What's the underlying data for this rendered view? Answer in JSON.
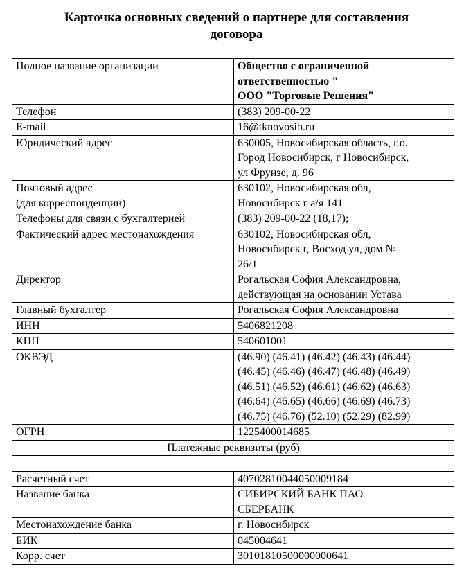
{
  "title": "Карточка основных сведений о партнере для составления\nдоговора",
  "rows": [
    {
      "label": "Полное название организации",
      "value": "Общество с ограниченной\nответственностью \"\nООО \"Торговые Решения\""
    },
    {
      "label": "Телефон",
      "value": "(383) 209-00-22"
    },
    {
      "label": "E-mail",
      "value": "16@tknovosib.ru"
    },
    {
      "label": "Юридический адрес",
      "value": "630005, Новосибирская область, г.о.\nГород Новосибирск, г Новосибирск,\nул Фрунзе, д. 96"
    },
    {
      "label": "Почтовый адрес\n(для корреспонденции)",
      "value": "630102, Новосибирская обл,\nНовосибирск г а/я 141"
    },
    {
      "label": "Телефоны для связи с бухгалтерией",
      "value": "(383) 209-00-22 (18,17);"
    },
    {
      "label": "Фактический адрес местонахождения",
      "value": "630102, Новосибирская обл,\nНовосибирск г, Восход ул, дом №\n26/1"
    },
    {
      "label": "Директор",
      "value": "Рогальская София Александровна,\nдействующая на основании Устава"
    },
    {
      "label": "Главный бухгалтер",
      "value": "Рогальская София Александровна"
    },
    {
      "label": "ИНН",
      "value": "5406821208"
    },
    {
      "label": "КПП",
      "value": "540601001"
    },
    {
      "label": "ОКВЭД",
      "value": "(46.90) (46.41) (46.42) (46.43) (46.44)\n(46.45) (46.46) (46.47) (46.48) (46.49)\n(46.51) (46.52) (46.61) (46.62) (46.63)\n(46.64) (46.65) (46.66) (46.69) (46.73)\n(46.75) (46.76) (52.10) (52.29) (82.99)"
    },
    {
      "label": "ОГРН",
      "value": "1225400014685"
    }
  ],
  "payment_header": "Платежные реквизиты (руб)",
  "bank_rows": [
    {
      "label": "Расчетный счет",
      "value": "40702810044050009184"
    },
    {
      "label": "Название банка",
      "value": "СИБИРСКИЙ БАНК ПАО\nСБЕРБАНК"
    },
    {
      "label": "Местонахождение банка",
      "value": "г. Новосибирск"
    },
    {
      "label": "БИК",
      "value": "045004641"
    },
    {
      "label": "Корр. счет",
      "value": "30101810500000000641"
    }
  ]
}
